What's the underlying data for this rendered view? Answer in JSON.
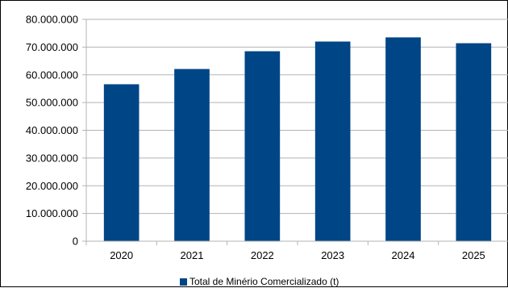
{
  "chart_data": {
    "type": "bar",
    "categories": [
      "2020",
      "2021",
      "2022",
      "2023",
      "2024",
      "2025"
    ],
    "series": [
      {
        "name": "Total de Minério Comercializado (t)",
        "values": [
          56600000,
          62100000,
          68500000,
          72000000,
          73500000,
          71400000
        ],
        "color": "#004586"
      }
    ],
    "ylim": [
      0,
      80000000
    ],
    "yticks": [
      0,
      10000000,
      20000000,
      30000000,
      40000000,
      50000000,
      60000000,
      70000000,
      80000000
    ],
    "ytick_labels": [
      "0",
      "10.000.000",
      "20.000.000",
      "30.000.000",
      "40.000.000",
      "50.000.000",
      "60.000.000",
      "70.000.000",
      "80.000.000"
    ],
    "grid": true,
    "grid_color": "#b3b3b3",
    "legend_position": "bottom"
  }
}
